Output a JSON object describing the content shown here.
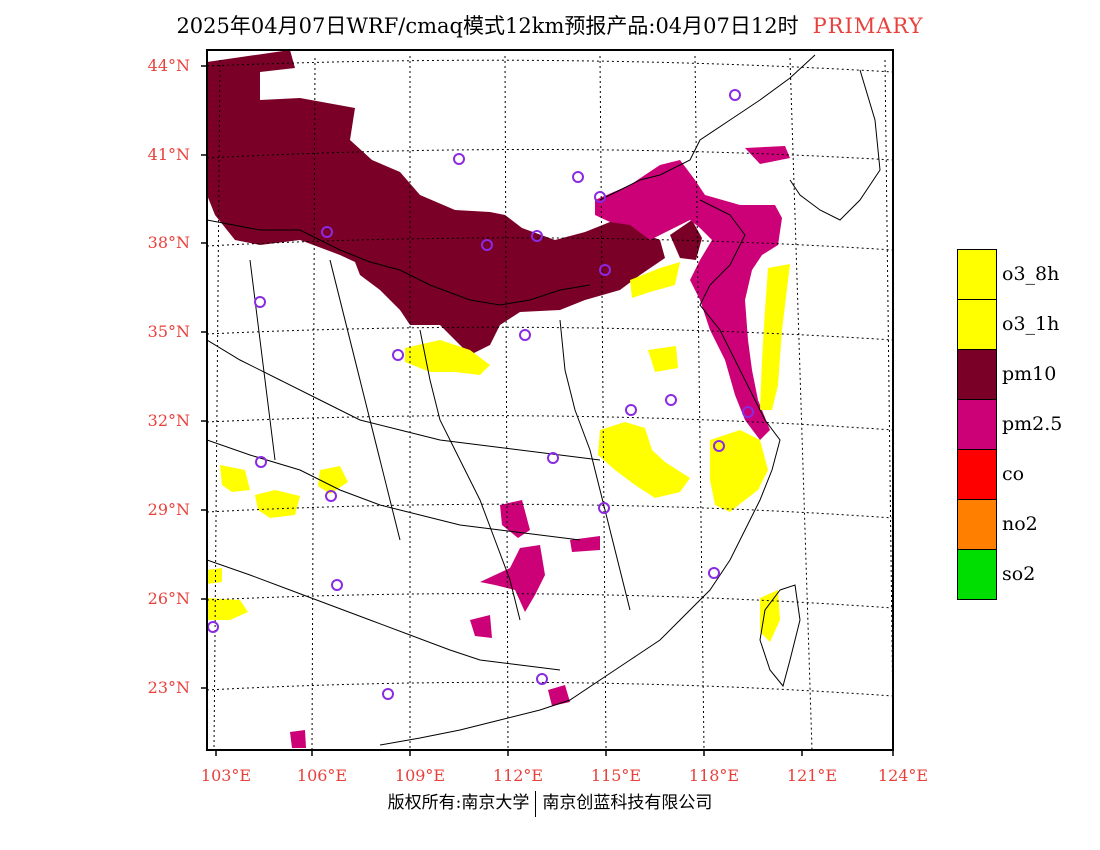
{
  "title": {
    "main": "2025年04月07日WRF/cmaq模式12km预报产品:04月07日12时",
    "tag": "PRIMARY"
  },
  "axes": {
    "lat_labels": [
      "44°N",
      "41°N",
      "38°N",
      "35°N",
      "32°N",
      "29°N",
      "26°N",
      "23°N"
    ],
    "lon_labels": [
      "103°E",
      "106°E",
      "109°E",
      "112°E",
      "115°E",
      "118°E",
      "121°E",
      "124°E"
    ]
  },
  "legend": {
    "items": [
      {
        "label": "o3_8h",
        "color": "#ffff00"
      },
      {
        "label": "o3_1h",
        "color": "#ffff00"
      },
      {
        "label": "pm10",
        "color": "#7a0028"
      },
      {
        "label": "pm2.5",
        "color": "#cc0077"
      },
      {
        "label": "co",
        "color": "#ff0000"
      },
      {
        "label": "no2",
        "color": "#ff7f00"
      },
      {
        "label": "so2",
        "color": "#00dd00"
      }
    ]
  },
  "footer": {
    "left": "版权所有:南京大学",
    "right": "南京创蓝科技有限公司"
  },
  "colors": {
    "pm10": "#7a0028",
    "pm25": "#cc0077",
    "o3": "#ffff00",
    "station": "#8a2be2",
    "axis_text": "#e8413c"
  }
}
